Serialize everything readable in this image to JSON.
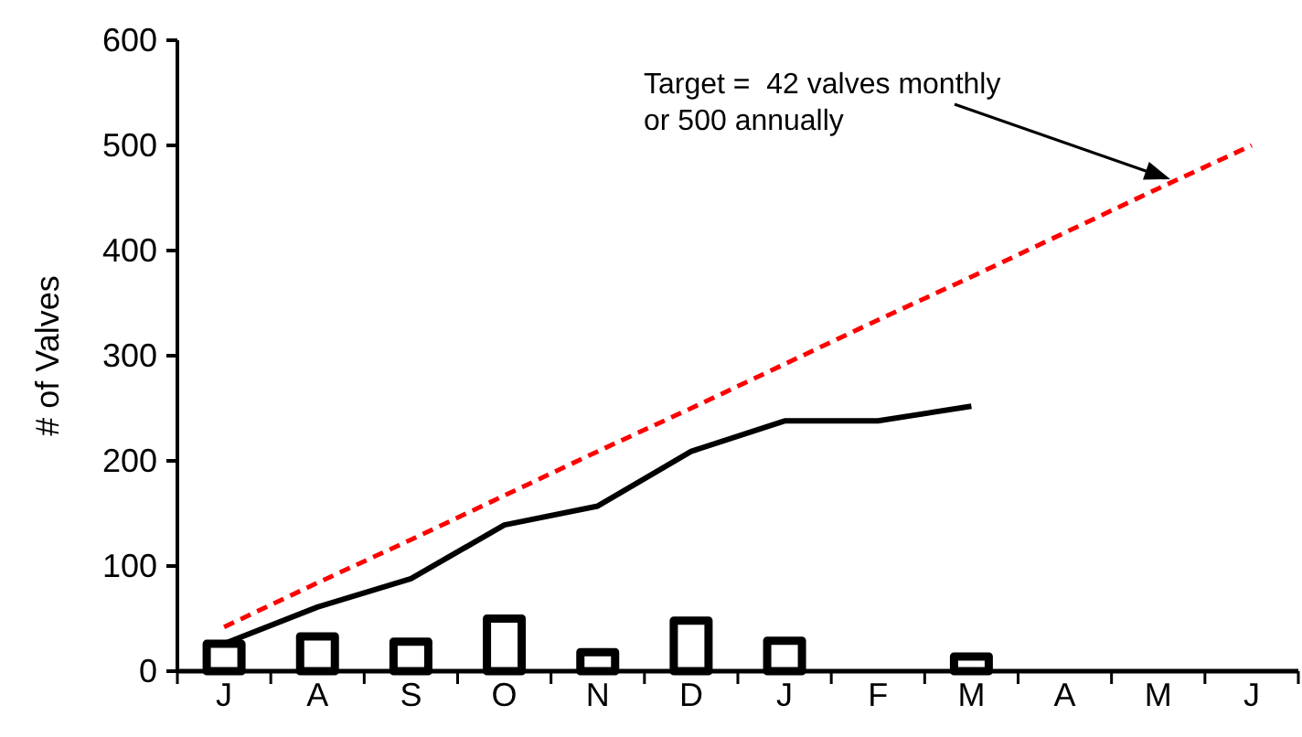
{
  "chart_data": {
    "type": "bar",
    "ylabel": "# of Valves",
    "categories": [
      "J",
      "A",
      "S",
      "O",
      "N",
      "D",
      "J",
      "F",
      "M",
      "A",
      "M",
      "J"
    ],
    "series": [
      {
        "color": "#000000",
        "values": [
          26,
          33,
          28,
          50,
          18,
          48,
          29,
          null,
          14,
          null,
          null,
          null
        ]
      },
      {
        "type": "line",
        "color": "#000000",
        "line_style": "solid",
        "values": [
          26,
          61,
          88,
          139,
          157,
          209,
          238,
          238,
          252,
          null,
          null,
          null
        ]
      },
      {
        "type": "line",
        "color": "#ff0000",
        "line_style": "dashed",
        "values": [
          42,
          84,
          125,
          167,
          209,
          250,
          292,
          334,
          375,
          417,
          459,
          500
        ]
      }
    ],
    "ylim": [
      0,
      600
    ],
    "yticks": [
      0,
      100,
      200,
      300,
      400,
      500,
      600
    ],
    "annotations": [
      "Target =  42 valves monthly\nor 500 annually"
    ],
    "grid": false,
    "marker": "none"
  }
}
